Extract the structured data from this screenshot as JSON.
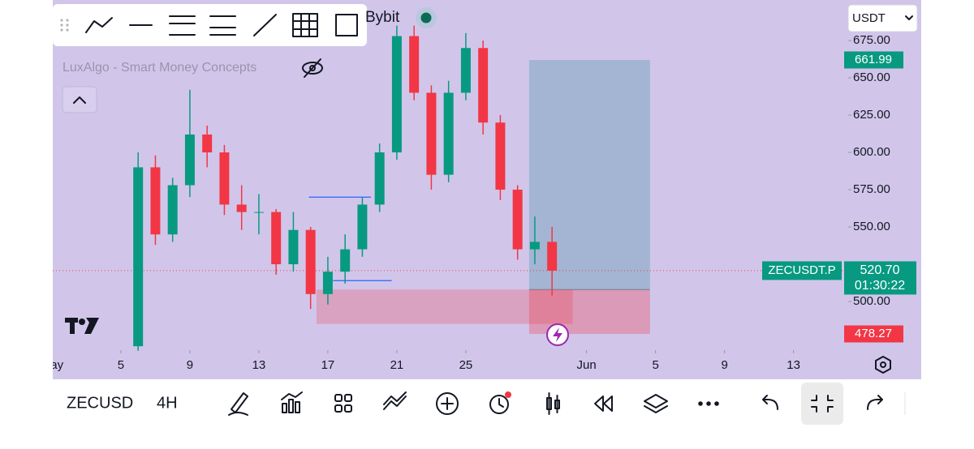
{
  "ui": {
    "exchange": "Bybit",
    "currency": "USDT",
    "symbol": "ZECUSD",
    "interval": "4H",
    "indicator": "LuxAlgo - Smart Money Concepts"
  },
  "chart_data": {
    "type": "candlestick",
    "x": [
      6,
      7,
      8,
      9,
      10,
      11,
      12,
      13,
      14,
      15,
      16,
      17,
      18,
      19,
      20,
      21,
      22,
      23,
      24,
      25,
      26,
      27,
      28,
      29,
      30
    ],
    "open": [
      470,
      590,
      545,
      578,
      612,
      600,
      565,
      560,
      560,
      525,
      548,
      505,
      520,
      535,
      565,
      600,
      678,
      640,
      585,
      640,
      670,
      620,
      575,
      535,
      540
    ],
    "high": [
      600,
      598,
      583,
      642,
      618,
      605,
      578,
      572,
      562,
      560,
      550,
      530,
      545,
      570,
      606,
      685,
      685,
      645,
      648,
      680,
      675,
      625,
      578,
      557,
      550
    ],
    "low": [
      467,
      538,
      540,
      570,
      590,
      558,
      548,
      545,
      518,
      520,
      495,
      498,
      512,
      530,
      560,
      595,
      635,
      575,
      580,
      635,
      612,
      568,
      528,
      525,
      504
    ],
    "close": [
      590,
      545,
      578,
      612,
      600,
      565,
      560,
      560,
      525,
      548,
      505,
      520,
      535,
      565,
      600,
      678,
      640,
      585,
      640,
      670,
      620,
      575,
      535,
      540,
      520.7
    ],
    "up_color": "#089981",
    "down_color": "#f23645",
    "xlim": [
      1.05,
      47.17
    ],
    "xticks": [
      {
        "value": 1,
        "label": "May"
      },
      5,
      9,
      13,
      17,
      21,
      25,
      {
        "value": 32,
        "label": "Jun"
      },
      {
        "value": 36,
        "label": "5"
      },
      {
        "value": 40,
        "label": "9"
      },
      {
        "value": 44,
        "label": "13"
      }
    ],
    "ylim": [
      467.4,
      702.2
    ],
    "yticks": [
      {
        "value": 500,
        "label": "500.00"
      },
      {
        "value": 550,
        "label": "550.00"
      },
      {
        "value": 575,
        "label": "575.00"
      },
      {
        "value": 600,
        "label": "600.00"
      },
      {
        "value": 625,
        "label": "625.00"
      },
      {
        "value": 650,
        "label": "650.00"
      },
      {
        "value": 675,
        "label": "675.00"
      }
    ],
    "last_price": {
      "value": 520.7,
      "label": "520.70"
    },
    "countdown": "01:30:22",
    "symbol_label": "ZECUSDT.P",
    "position": {
      "start": 28.67,
      "end": 35.68,
      "entry": 508,
      "target": {
        "value": 661.99,
        "label": "661.99"
      },
      "stop": {
        "value": 478.27,
        "label": "478.27"
      }
    },
    "order_block": {
      "start": 16.34,
      "end": 31.2,
      "top": 508,
      "bottom": 485
    },
    "levels": [
      {
        "start": 15.9,
        "end": 19.5,
        "value": 570
      },
      {
        "start": 17.3,
        "end": 20.7,
        "value": 514
      }
    ]
  }
}
